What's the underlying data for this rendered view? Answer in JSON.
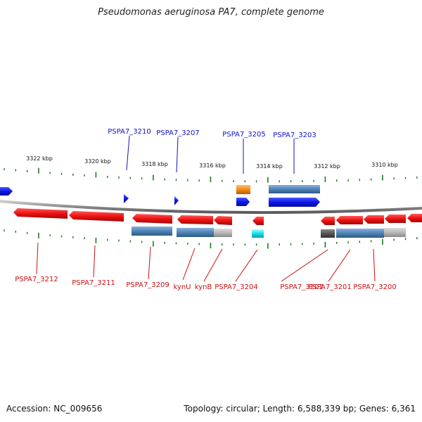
{
  "title": "Pseudomonas aeruginosa PA7, complete genome",
  "footer": {
    "accession": "Accession: NC_009656",
    "summary": "Topology: circular; Length: 6,588,339 bp; Genes: 6,361"
  },
  "colors": {
    "forward_gene": "#0b17e6",
    "reverse_gene": "#ee1111",
    "cds_steel": "#4f82b4",
    "cds_grey": "#b8b8b8",
    "cds_dark": "#555555",
    "orange": "#f58a12",
    "cyan": "#17dfe8",
    "tick": "#1e7a1e",
    "backbone": "#888888",
    "label_top": "#1010c8",
    "label_bottom": "#cc1010"
  },
  "scale_labels": [
    "3322 kbp",
    "3320 kbp",
    "3318 kbp",
    "3316 kbp",
    "3314 kbp",
    "3312 kbp",
    "3310 kbp"
  ],
  "top_labels": [
    "PSPA7_3210",
    "PSPA7_3207",
    "PSPA7_3205",
    "PSPA7_3203"
  ],
  "bottom_labels": [
    "PSPA7_3212",
    "PSPA7_3211",
    "PSPA7_3209",
    "kynU",
    "kynB",
    "PSPA7_3204",
    "PSPA7_3202",
    "PSPA7_3201",
    "PSPA7_3200"
  ]
}
